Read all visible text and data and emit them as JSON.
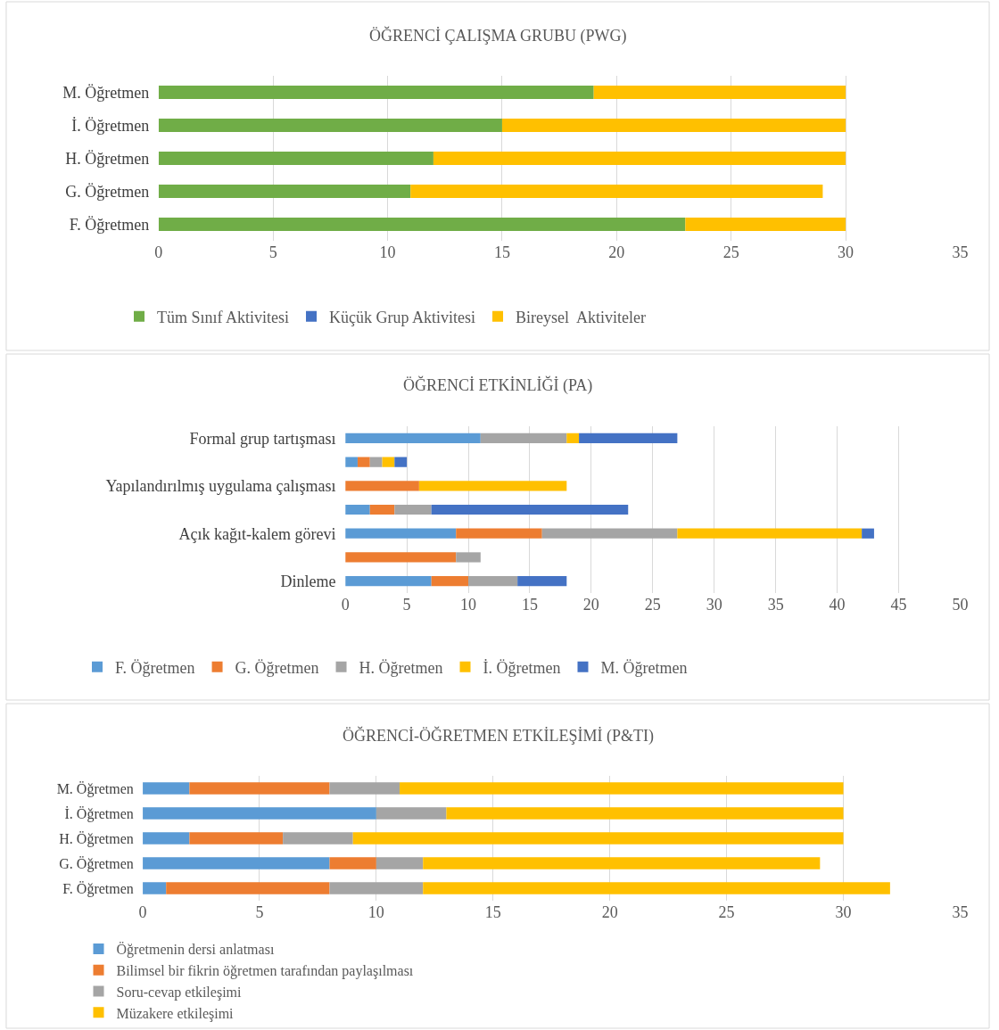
{
  "chart_data": [
    {
      "type": "bar",
      "orientation": "horizontal",
      "stacked": true,
      "title": "ÖĞRENCİ ÇALIŞMA GRUBU (PWG)",
      "categories": [
        "M. Öğretmen",
        "İ. Öğretmen",
        "H. Öğretmen",
        "G. Öğretmen",
        "F. Öğretmen"
      ],
      "xlim": [
        0,
        35
      ],
      "xticks": [
        0,
        5,
        10,
        15,
        20,
        25,
        30,
        35
      ],
      "grid": "x",
      "legend": "bottom",
      "series": [
        {
          "name": "Tüm Sınıf Aktivitesi",
          "color": "#70ad47",
          "values": [
            19,
            15,
            12,
            11,
            23
          ]
        },
        {
          "name": "Küçük Grup Aktivitesi",
          "color": "#4472c4",
          "values": [
            0,
            0,
            0,
            0,
            0
          ]
        },
        {
          "name": "Bireysel  Aktiviteler",
          "color": "#ffc000",
          "values": [
            11,
            15,
            18,
            18,
            7
          ]
        }
      ]
    },
    {
      "type": "bar",
      "orientation": "horizontal",
      "stacked": true,
      "title": "ÖĞRENCİ ETKİNLİĞİ (PA)",
      "categories": [
        "Formal grup tartışması",
        null,
        "Yapılandırılmış uygulama çalışması",
        null,
        "Açık kağıt-kalem görevi",
        null,
        "Dinleme"
      ],
      "xlim": [
        0,
        50
      ],
      "xticks": [
        0,
        5,
        10,
        15,
        20,
        25,
        30,
        35,
        40,
        45,
        50
      ],
      "grid": "x",
      "legend": "bottom",
      "series": [
        {
          "name": "F. Öğretmen",
          "color": "#5b9bd5",
          "values": [
            11,
            1,
            0,
            2,
            9,
            0,
            7
          ]
        },
        {
          "name": "G. Öğretmen",
          "color": "#ed7d31",
          "values": [
            0,
            1,
            6,
            2,
            7,
            9,
            3
          ]
        },
        {
          "name": "H. Öğretmen",
          "color": "#a5a5a5",
          "values": [
            7,
            1,
            0,
            3,
            11,
            2,
            4
          ]
        },
        {
          "name": "İ. Öğretmen",
          "color": "#ffc000",
          "values": [
            1,
            1,
            12,
            0,
            15,
            0,
            0
          ]
        },
        {
          "name": "M. Öğretmen",
          "color": "#4472c4",
          "values": [
            8,
            1,
            0,
            16,
            1,
            0,
            4
          ]
        }
      ]
    },
    {
      "type": "bar",
      "orientation": "horizontal",
      "stacked": true,
      "title": "ÖĞRENCİ-ÖĞRETMEN ETKİLEŞİMİ (P&TI)",
      "categories": [
        "M. Öğretmen",
        "İ. Öğretmen",
        "H. Öğretmen",
        "G. Öğretmen",
        "F. Öğretmen"
      ],
      "xlim": [
        0,
        35
      ],
      "xticks": [
        0,
        5,
        10,
        15,
        20,
        25,
        30,
        35
      ],
      "grid": "x",
      "legend": "bottom",
      "series": [
        {
          "name": "Öğretmenin dersi anlatması",
          "color": "#5b9bd5",
          "values": [
            2,
            10,
            2,
            8,
            1
          ]
        },
        {
          "name": "Bilimsel bir fikrin öğretmen tarafından paylaşılması",
          "color": "#ed7d31",
          "values": [
            6,
            0,
            4,
            2,
            7
          ]
        },
        {
          "name": "Soru-cevap etkileşimi",
          "color": "#a5a5a5",
          "values": [
            3,
            3,
            3,
            2,
            4
          ]
        },
        {
          "name": "Müzakere etkileşimi",
          "color": "#ffc000",
          "values": [
            19,
            17,
            21,
            17,
            20
          ]
        }
      ]
    }
  ]
}
